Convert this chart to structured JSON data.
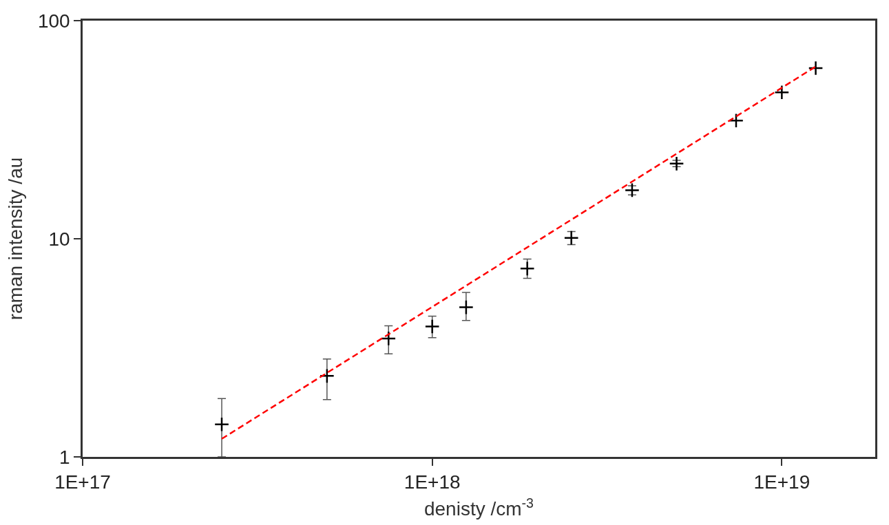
{
  "chart_data": {
    "type": "scatter",
    "xlabel": "denisty /cm$^{-3}$",
    "ylabel": "raman intensity /au",
    "log": "xy",
    "xlim": [
      1e+17,
      1.85e+19
    ],
    "xticks": [
      {
        "value": 1e+17,
        "label": "1E+17"
      },
      {
        "value": 1e+18,
        "label": "1E+18"
      },
      {
        "value": 1e+19,
        "label": "1E+19"
      }
    ],
    "ylim": [
      1,
      100
    ],
    "yticks": [
      1,
      10,
      100
    ],
    "series": [
      {
        "color": "#000000",
        "marker": "cross",
        "x": [
          2.5e+17,
          5e+17,
          7.5e+17,
          1e+18,
          1.25e+18,
          1.87e+18,
          2.5e+18,
          3.73e+18,
          5e+18,
          7.4e+18,
          1e+19,
          1.25e+19
        ],
        "values": [
          1.41,
          2.35,
          3.49,
          3.96,
          4.85,
          7.3,
          10.1,
          16.7,
          22.1,
          34.8,
          46.9,
          60.6
        ],
        "errors": [
          [
            1.0,
            1.85
          ],
          [
            1.83,
            2.81
          ],
          [
            2.97,
            3.99
          ],
          [
            3.52,
            4.42
          ],
          [
            4.22,
            5.67
          ],
          [
            6.58,
            8.07
          ],
          [
            9.4,
            10.8
          ],
          [
            15.9,
            17.5
          ],
          [
            21.4,
            22.9
          ],
          null,
          null,
          null
        ]
      },
      {
        "type": "line",
        "color": "#ff0000",
        "line_style": "dashed",
        "marker": "none",
        "x": [
          2.5e+17,
          1.25e+19
        ],
        "values": [
          1.21,
          61.6
        ]
      }
    ]
  }
}
